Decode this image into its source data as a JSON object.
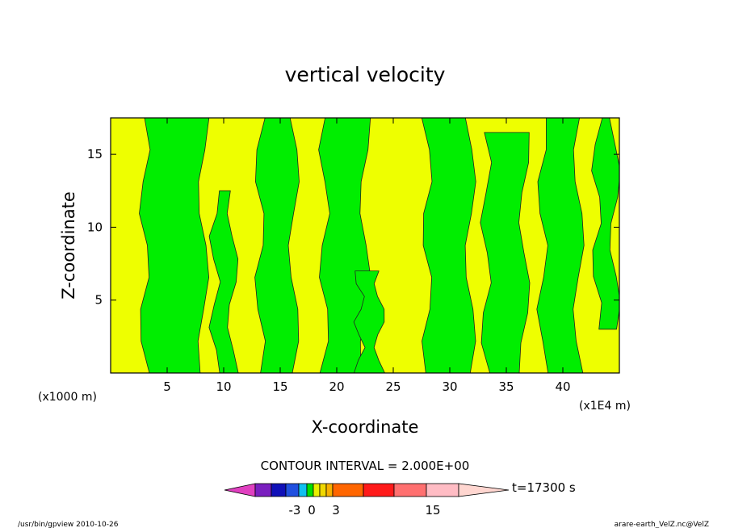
{
  "chart_data": {
    "type": "heatmap",
    "title": "vertical velocity",
    "xlabel": "X-coordinate",
    "ylabel": "Z-coordinate",
    "x_unit_left": "(x1000 m)",
    "x_unit_right": "(x1E4 m)",
    "xlim": [
      0,
      45
    ],
    "ylim": [
      0,
      17.5
    ],
    "xticks": [
      5,
      10,
      15,
      20,
      25,
      30,
      35,
      40
    ],
    "yticks": [
      5,
      10,
      15
    ],
    "contour_interval_text": "CONTOUR INTERVAL = 2.000E+00",
    "time_label": "t=17300 s",
    "footer_left": "/usr/bin/gpview  2010-10-26",
    "footer_right": "arare-earth_VelZ.nc@VelZ",
    "colorbar": {
      "tick_labels": [
        "-3",
        "0",
        "3",
        "15"
      ],
      "colors": [
        "#e040c0",
        "#7a1fbf",
        "#1010b8",
        "#2050e0",
        "#10c0f0",
        "#00e000",
        "#e8f000",
        "#f0d800",
        "#f8b000",
        "#ff6600",
        "#ff1a1a",
        "#ff7070",
        "#ffbcc4",
        "#ffd6d0"
      ]
    },
    "field": {
      "description_colors": {
        "positive": "#00ee00",
        "negative": "#eeff00"
      },
      "green_bands": [
        {
          "x": 3.0,
          "w": 5.2,
          "z0": 0.0,
          "z1": 17.5
        },
        {
          "x": 9.2,
          "w": 1.6,
          "z0": 0.0,
          "z1": 12.5
        },
        {
          "x": 13.2,
          "w": 3.0,
          "z0": 0.0,
          "z1": 17.5
        },
        {
          "x": 18.9,
          "w": 3.6,
          "z0": 0.0,
          "z1": 17.5
        },
        {
          "x": 22.0,
          "w": 1.8,
          "z0": 0.0,
          "z1": 7.0
        },
        {
          "x": 28.0,
          "w": 3.8,
          "z0": 0.0,
          "z1": 17.5
        },
        {
          "x": 33.2,
          "w": 3.4,
          "z0": 0.0,
          "z1": 16.5
        },
        {
          "x": 38.2,
          "w": 3.2,
          "z0": 0.0,
          "z1": 17.5
        },
        {
          "x": 43.0,
          "w": 1.6,
          "z0": 3.0,
          "z1": 17.5
        }
      ]
    }
  }
}
